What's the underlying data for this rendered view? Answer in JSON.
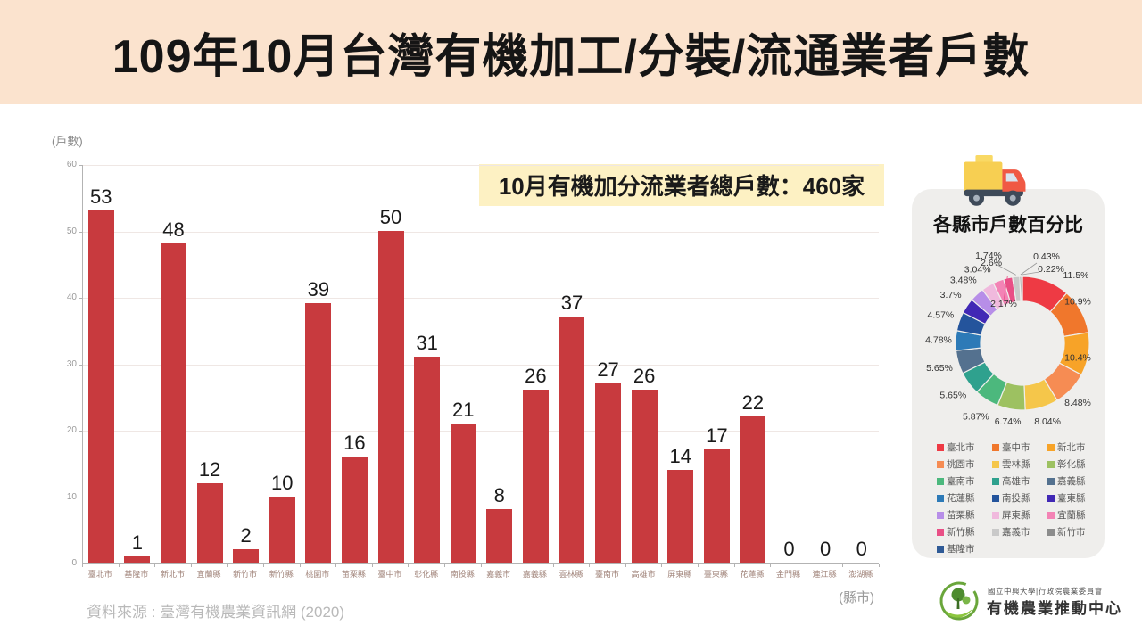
{
  "title": "109年10月台灣有機加工/分裝/流通業者戶數",
  "callout": {
    "text": "10月有機加分流業者總戶數：460家",
    "bg": "#fdf1c3"
  },
  "axes": {
    "y_unit": "(戶數)",
    "x_unit": "(縣市)"
  },
  "source": "資料來源 : 臺灣有機農業資訊網 (2020)",
  "panel": {
    "title": "各縣市戶數百分比",
    "bg": "#efeeec",
    "truck_icon": "delivery-truck-icon"
  },
  "logo": {
    "org_small": "國立中興大學|行政院農業委員會",
    "org_large": "有機農業推動中心"
  },
  "colors": {
    "bar": "#c83a3e",
    "title_band": "#fbe3ce",
    "grid": "#efe7e4"
  },
  "chart_data": [
    {
      "type": "bar",
      "title": "109年10月台灣有機加工/分裝/流通業者戶數",
      "categories": [
        "臺北市",
        "基隆市",
        "新北市",
        "宜蘭縣",
        "新竹市",
        "新竹縣",
        "桃園市",
        "苗栗縣",
        "臺中市",
        "彰化縣",
        "南投縣",
        "嘉義市",
        "嘉義縣",
        "雲林縣",
        "臺南市",
        "高雄市",
        "屏東縣",
        "臺東縣",
        "花蓮縣",
        "金門縣",
        "連江縣",
        "澎湖縣"
      ],
      "values": [
        53,
        1,
        48,
        12,
        2,
        10,
        39,
        16,
        50,
        31,
        21,
        8,
        26,
        37,
        27,
        26,
        14,
        17,
        22,
        0,
        0,
        0
      ],
      "xlabel": "(縣市)",
      "ylabel": "(戶數)",
      "ylim": [
        0,
        60
      ],
      "yticks": [
        0,
        10,
        20,
        30,
        40,
        50,
        60
      ],
      "grid": true,
      "bar_color": "#c83a3e",
      "total": 460
    },
    {
      "type": "pie",
      "donut": true,
      "title": "各縣市戶數百分比",
      "labels": [
        "臺北市",
        "臺中市",
        "新北市",
        "桃園市",
        "雲林縣",
        "彰化縣",
        "臺南市",
        "高雄市",
        "嘉義縣",
        "花蓮縣",
        "南投縣",
        "臺東縣",
        "苗栗縣",
        "屏東縣",
        "宜蘭縣",
        "新竹縣",
        "嘉義市",
        "新竹市",
        "基隆市"
      ],
      "values": [
        11.5,
        10.9,
        10.4,
        8.48,
        8.04,
        6.74,
        5.87,
        5.65,
        5.65,
        4.78,
        4.57,
        3.7,
        3.48,
        3.04,
        2.6,
        2.17,
        1.74,
        0.43,
        0.22
      ],
      "value_labels": [
        "11.5%",
        "10.9%",
        "10.4%",
        "8.48%",
        "8.04%",
        "6.74%",
        "5.87%",
        "5.65%",
        "5.65%",
        "4.78%",
        "4.57%",
        "3.7%",
        "3.48%",
        "3.04%",
        "2.6%",
        "2.17%",
        "1.74%",
        "0.43%",
        "0.22%"
      ],
      "colors": [
        "#ee3a44",
        "#f0772c",
        "#f7a328",
        "#f68c53",
        "#f5c64a",
        "#9dc161",
        "#4cb87d",
        "#2fa18e",
        "#54718f",
        "#2d7ab7",
        "#24549c",
        "#4128b5",
        "#b78ee8",
        "#f0b9dd",
        "#f383b5",
        "#e94f86",
        "#c9c9c9",
        "#8c8c8c",
        "#2f5a96"
      ],
      "legend_position": "bottom"
    }
  ]
}
